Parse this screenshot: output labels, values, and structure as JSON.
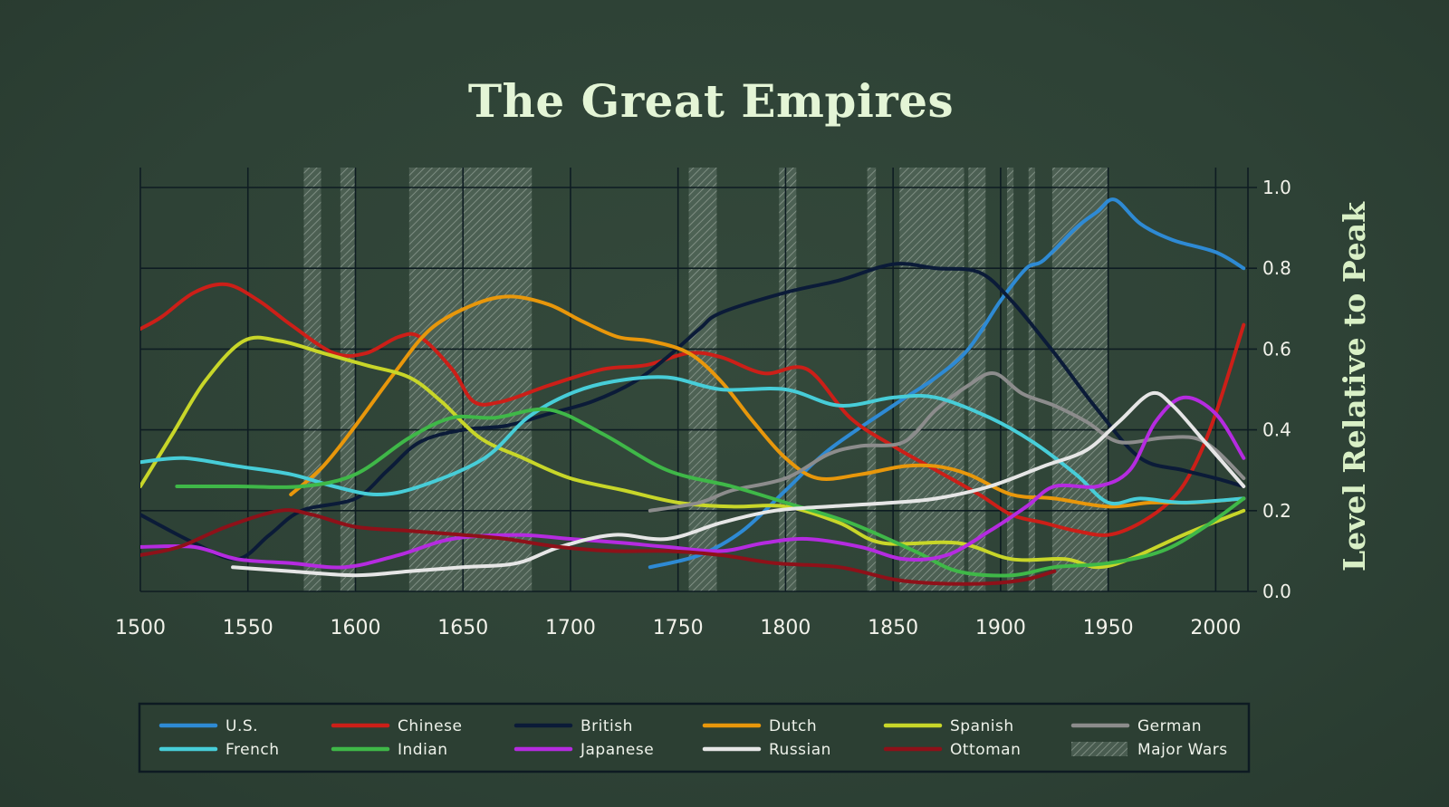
{
  "chart_data": {
    "type": "line",
    "title": "The Great Empires",
    "xlabel": "",
    "ylabel": "Level Relative to Peak",
    "xlim": [
      1500,
      2015
    ],
    "ylim": [
      0,
      1.0
    ],
    "x_ticks": [
      "1500",
      "1550",
      "1600",
      "1650",
      "1700",
      "1750",
      "1800",
      "1850",
      "1900",
      "1950",
      "2000"
    ],
    "y_ticks": [
      "0.0",
      "0.2",
      "0.4",
      "0.6",
      "0.8",
      "1.0"
    ],
    "major_wars": [
      [
        1576,
        1584
      ],
      [
        1593,
        1600
      ],
      [
        1625,
        1682
      ],
      [
        1755,
        1768
      ],
      [
        1797,
        1805
      ],
      [
        1838,
        1842
      ],
      [
        1853,
        1883
      ],
      [
        1885,
        1893
      ],
      [
        1903,
        1906
      ],
      [
        1913,
        1916
      ],
      [
        1924,
        1950
      ]
    ],
    "series": [
      {
        "name": "U.S.",
        "color": "#2e8ad4",
        "points": [
          [
            1737,
            0.06
          ],
          [
            1760,
            0.09
          ],
          [
            1780,
            0.15
          ],
          [
            1800,
            0.25
          ],
          [
            1820,
            0.35
          ],
          [
            1850,
            0.46
          ],
          [
            1870,
            0.53
          ],
          [
            1885,
            0.6
          ],
          [
            1900,
            0.72
          ],
          [
            1912,
            0.8
          ],
          [
            1920,
            0.82
          ],
          [
            1935,
            0.9
          ],
          [
            1945,
            0.94
          ],
          [
            1953,
            0.97
          ],
          [
            1965,
            0.91
          ],
          [
            1980,
            0.87
          ],
          [
            2000,
            0.84
          ],
          [
            2013,
            0.8
          ]
        ]
      },
      {
        "name": "Chinese",
        "color": "#cc1f18",
        "points": [
          [
            1500,
            0.65
          ],
          [
            1510,
            0.68
          ],
          [
            1525,
            0.74
          ],
          [
            1540,
            0.76
          ],
          [
            1555,
            0.72
          ],
          [
            1570,
            0.66
          ],
          [
            1590,
            0.59
          ],
          [
            1605,
            0.59
          ],
          [
            1620,
            0.63
          ],
          [
            1630,
            0.63
          ],
          [
            1645,
            0.55
          ],
          [
            1655,
            0.47
          ],
          [
            1668,
            0.47
          ],
          [
            1690,
            0.51
          ],
          [
            1715,
            0.55
          ],
          [
            1735,
            0.56
          ],
          [
            1755,
            0.59
          ],
          [
            1770,
            0.58
          ],
          [
            1790,
            0.54
          ],
          [
            1810,
            0.55
          ],
          [
            1830,
            0.43
          ],
          [
            1850,
            0.36
          ],
          [
            1870,
            0.3
          ],
          [
            1890,
            0.24
          ],
          [
            1905,
            0.19
          ],
          [
            1920,
            0.17
          ],
          [
            1935,
            0.15
          ],
          [
            1950,
            0.14
          ],
          [
            1965,
            0.17
          ],
          [
            1980,
            0.23
          ],
          [
            1990,
            0.31
          ],
          [
            2000,
            0.44
          ],
          [
            2013,
            0.66
          ]
        ]
      },
      {
        "name": "British",
        "color": "#0b1b38",
        "points": [
          [
            1500,
            0.19
          ],
          [
            1525,
            0.12
          ],
          [
            1545,
            0.08
          ],
          [
            1560,
            0.14
          ],
          [
            1575,
            0.2
          ],
          [
            1600,
            0.23
          ],
          [
            1615,
            0.3
          ],
          [
            1630,
            0.37
          ],
          [
            1650,
            0.4
          ],
          [
            1670,
            0.41
          ],
          [
            1690,
            0.44
          ],
          [
            1710,
            0.47
          ],
          [
            1730,
            0.52
          ],
          [
            1745,
            0.58
          ],
          [
            1760,
            0.65
          ],
          [
            1770,
            0.69
          ],
          [
            1800,
            0.74
          ],
          [
            1825,
            0.77
          ],
          [
            1850,
            0.81
          ],
          [
            1870,
            0.8
          ],
          [
            1890,
            0.79
          ],
          [
            1905,
            0.72
          ],
          [
            1925,
            0.59
          ],
          [
            1945,
            0.45
          ],
          [
            1965,
            0.33
          ],
          [
            1985,
            0.3
          ],
          [
            2000,
            0.28
          ],
          [
            2013,
            0.26
          ]
        ]
      },
      {
        "name": "Dutch",
        "color": "#e8970b",
        "points": [
          [
            1570,
            0.24
          ],
          [
            1585,
            0.31
          ],
          [
            1600,
            0.41
          ],
          [
            1618,
            0.54
          ],
          [
            1635,
            0.65
          ],
          [
            1655,
            0.71
          ],
          [
            1672,
            0.73
          ],
          [
            1690,
            0.71
          ],
          [
            1705,
            0.67
          ],
          [
            1722,
            0.63
          ],
          [
            1737,
            0.62
          ],
          [
            1755,
            0.59
          ],
          [
            1770,
            0.52
          ],
          [
            1785,
            0.42
          ],
          [
            1800,
            0.33
          ],
          [
            1815,
            0.28
          ],
          [
            1835,
            0.29
          ],
          [
            1855,
            0.31
          ],
          [
            1870,
            0.31
          ],
          [
            1885,
            0.29
          ],
          [
            1905,
            0.24
          ],
          [
            1925,
            0.23
          ],
          [
            1950,
            0.21
          ],
          [
            1970,
            0.22
          ],
          [
            1990,
            0.22
          ],
          [
            2013,
            0.23
          ]
        ]
      },
      {
        "name": "Spanish",
        "color": "#c8d629",
        "points": [
          [
            1500,
            0.26
          ],
          [
            1515,
            0.39
          ],
          [
            1530,
            0.52
          ],
          [
            1548,
            0.62
          ],
          [
            1565,
            0.62
          ],
          [
            1585,
            0.59
          ],
          [
            1605,
            0.56
          ],
          [
            1625,
            0.53
          ],
          [
            1640,
            0.47
          ],
          [
            1658,
            0.38
          ],
          [
            1678,
            0.33
          ],
          [
            1700,
            0.28
          ],
          [
            1725,
            0.25
          ],
          [
            1750,
            0.22
          ],
          [
            1775,
            0.21
          ],
          [
            1800,
            0.21
          ],
          [
            1825,
            0.17
          ],
          [
            1845,
            0.12
          ],
          [
            1880,
            0.12
          ],
          [
            1905,
            0.08
          ],
          [
            1930,
            0.08
          ],
          [
            1945,
            0.06
          ],
          [
            1960,
            0.08
          ],
          [
            1985,
            0.14
          ],
          [
            2013,
            0.2
          ]
        ]
      },
      {
        "name": "German",
        "color": "#8c8c8c",
        "points": [
          [
            1737,
            0.2
          ],
          [
            1760,
            0.22
          ],
          [
            1775,
            0.25
          ],
          [
            1800,
            0.28
          ],
          [
            1820,
            0.34
          ],
          [
            1835,
            0.36
          ],
          [
            1855,
            0.37
          ],
          [
            1870,
            0.45
          ],
          [
            1885,
            0.51
          ],
          [
            1897,
            0.54
          ],
          [
            1910,
            0.49
          ],
          [
            1925,
            0.46
          ],
          [
            1940,
            0.42
          ],
          [
            1955,
            0.37
          ],
          [
            1975,
            0.38
          ],
          [
            1990,
            0.38
          ],
          [
            2000,
            0.35
          ],
          [
            2013,
            0.28
          ]
        ]
      },
      {
        "name": "French",
        "color": "#47cdd8",
        "points": [
          [
            1500,
            0.32
          ],
          [
            1520,
            0.33
          ],
          [
            1545,
            0.31
          ],
          [
            1570,
            0.29
          ],
          [
            1590,
            0.26
          ],
          [
            1610,
            0.24
          ],
          [
            1630,
            0.26
          ],
          [
            1660,
            0.33
          ],
          [
            1680,
            0.43
          ],
          [
            1700,
            0.49
          ],
          [
            1720,
            0.52
          ],
          [
            1745,
            0.53
          ],
          [
            1770,
            0.5
          ],
          [
            1800,
            0.5
          ],
          [
            1825,
            0.46
          ],
          [
            1850,
            0.48
          ],
          [
            1870,
            0.48
          ],
          [
            1895,
            0.43
          ],
          [
            1915,
            0.37
          ],
          [
            1935,
            0.29
          ],
          [
            1950,
            0.22
          ],
          [
            1965,
            0.23
          ],
          [
            1985,
            0.22
          ],
          [
            2013,
            0.23
          ]
        ]
      },
      {
        "name": "Indian",
        "color": "#3fb848",
        "points": [
          [
            1517,
            0.26
          ],
          [
            1545,
            0.26
          ],
          [
            1575,
            0.26
          ],
          [
            1600,
            0.29
          ],
          [
            1625,
            0.38
          ],
          [
            1645,
            0.43
          ],
          [
            1665,
            0.43
          ],
          [
            1690,
            0.45
          ],
          [
            1715,
            0.39
          ],
          [
            1745,
            0.3
          ],
          [
            1775,
            0.26
          ],
          [
            1800,
            0.22
          ],
          [
            1830,
            0.17
          ],
          [
            1860,
            0.1
          ],
          [
            1880,
            0.05
          ],
          [
            1905,
            0.04
          ],
          [
            1925,
            0.06
          ],
          [
            1950,
            0.07
          ],
          [
            1975,
            0.1
          ],
          [
            1995,
            0.16
          ],
          [
            2013,
            0.23
          ]
        ]
      },
      {
        "name": "Japanese",
        "color": "#b52be0",
        "points": [
          [
            1500,
            0.11
          ],
          [
            1525,
            0.11
          ],
          [
            1545,
            0.08
          ],
          [
            1570,
            0.07
          ],
          [
            1595,
            0.06
          ],
          [
            1620,
            0.09
          ],
          [
            1645,
            0.13
          ],
          [
            1675,
            0.14
          ],
          [
            1700,
            0.13
          ],
          [
            1725,
            0.12
          ],
          [
            1745,
            0.11
          ],
          [
            1770,
            0.1
          ],
          [
            1790,
            0.12
          ],
          [
            1810,
            0.13
          ],
          [
            1835,
            0.11
          ],
          [
            1855,
            0.08
          ],
          [
            1875,
            0.09
          ],
          [
            1895,
            0.15
          ],
          [
            1912,
            0.21
          ],
          [
            1925,
            0.26
          ],
          [
            1945,
            0.26
          ],
          [
            1960,
            0.3
          ],
          [
            1972,
            0.42
          ],
          [
            1985,
            0.48
          ],
          [
            2000,
            0.44
          ],
          [
            2013,
            0.33
          ]
        ]
      },
      {
        "name": "Russian",
        "color": "#e6e6e6",
        "points": [
          [
            1543,
            0.06
          ],
          [
            1570,
            0.05
          ],
          [
            1600,
            0.04
          ],
          [
            1625,
            0.05
          ],
          [
            1650,
            0.06
          ],
          [
            1675,
            0.07
          ],
          [
            1695,
            0.11
          ],
          [
            1720,
            0.14
          ],
          [
            1745,
            0.13
          ],
          [
            1770,
            0.17
          ],
          [
            1795,
            0.2
          ],
          [
            1820,
            0.21
          ],
          [
            1850,
            0.22
          ],
          [
            1870,
            0.23
          ],
          [
            1895,
            0.26
          ],
          [
            1920,
            0.31
          ],
          [
            1940,
            0.35
          ],
          [
            1955,
            0.42
          ],
          [
            1970,
            0.49
          ],
          [
            1980,
            0.46
          ],
          [
            1995,
            0.37
          ],
          [
            2013,
            0.26
          ]
        ]
      },
      {
        "name": "Ottoman",
        "color": "#8e1119",
        "points": [
          [
            1500,
            0.09
          ],
          [
            1518,
            0.11
          ],
          [
            1540,
            0.16
          ],
          [
            1565,
            0.2
          ],
          [
            1580,
            0.19
          ],
          [
            1600,
            0.16
          ],
          [
            1625,
            0.15
          ],
          [
            1650,
            0.14
          ],
          [
            1670,
            0.13
          ],
          [
            1695,
            0.11
          ],
          [
            1720,
            0.1
          ],
          [
            1745,
            0.1
          ],
          [
            1770,
            0.09
          ],
          [
            1795,
            0.07
          ],
          [
            1825,
            0.06
          ],
          [
            1850,
            0.03
          ],
          [
            1870,
            0.02
          ],
          [
            1895,
            0.02
          ],
          [
            1912,
            0.03
          ],
          [
            1925,
            0.05
          ]
        ]
      }
    ],
    "legend": [
      "U.S.",
      "Chinese",
      "British",
      "Dutch",
      "Spanish",
      "German",
      "French",
      "Indian",
      "Japanese",
      "Russian",
      "Ottoman",
      "Major Wars"
    ],
    "legend_placement": "bottom"
  }
}
